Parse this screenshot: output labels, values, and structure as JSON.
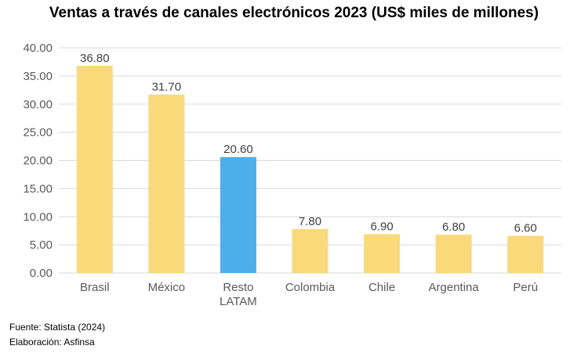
{
  "chart_data": {
    "type": "bar",
    "title": "Ventas a través de canales electrónicos 2023 (US$ miles de millones)",
    "categories": [
      "Brasil",
      "México",
      "Resto LATAM",
      "Colombia",
      "Chile",
      "Argentina",
      "Perú"
    ],
    "category_lines": [
      [
        "Brasil"
      ],
      [
        "México"
      ],
      [
        "Resto",
        "LATAM"
      ],
      [
        "Colombia"
      ],
      [
        "Chile"
      ],
      [
        "Argentina"
      ],
      [
        "Perú"
      ]
    ],
    "values": [
      36.8,
      31.7,
      20.6,
      7.8,
      6.9,
      6.8,
      6.6
    ],
    "value_labels": [
      "36.80",
      "31.70",
      "20.60",
      "7.80",
      "6.90",
      "6.80",
      "6.60"
    ],
    "ylim": [
      0,
      40
    ],
    "yticks": [
      "0.00",
      "5.00",
      "10.00",
      "15.00",
      "20.00",
      "25.00",
      "30.00",
      "35.00",
      "40.00"
    ],
    "grid": true,
    "colors": {
      "default_bar": "#FAD97A",
      "highlight_bar": "#4DAEEA",
      "gridline": "#D9D9D9"
    },
    "highlight_index": 2
  },
  "footer": {
    "source": "Fuente: Statista (2024)",
    "credit": "Elaboración: Asfinsa"
  }
}
